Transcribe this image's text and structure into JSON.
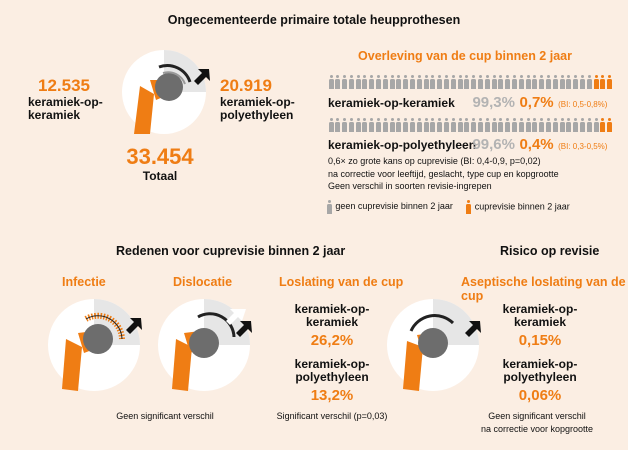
{
  "main_title": "Ongecementeerde primaire totale heupprothesen",
  "left_count": {
    "value": "12.535",
    "label_line1": "keramiek-op-",
    "label_line2": "keramiek"
  },
  "right_count": {
    "value": "20.919",
    "label_line1": "keramiek-op-",
    "label_line2": "polyethyleen"
  },
  "total": {
    "value": "33.454",
    "label": "Totaal"
  },
  "survival": {
    "title": "Overleving van de cup binnen 2 jaar",
    "row1": {
      "label": "keramiek-op-keramiek",
      "survival": "99,3%",
      "revision": "0,7%",
      "ci": "(BI: 0,5-0,8%)",
      "revision_fraction": 0.007
    },
    "row2": {
      "label": "keramiek-op-polyethyleen",
      "survival": "99,6%",
      "revision": "0,4%",
      "ci": "(BI: 0,3-0,5%)",
      "revision_fraction": 0.004
    },
    "note1": "0,6× zo grote kans op cuprevisie (BI: 0,4-0,9, p=0,02)",
    "note2": "na correctie voor leeftijd, geslacht, type cup en kopgrootte",
    "note3": "Geen verschil in soorten revisie-ingrepen",
    "legend_gray": "geen cuprevisie binnen 2 jaar",
    "legend_orange": "cuprevisie binnen 2 jaar"
  },
  "reasons": {
    "title": "Redenen voor cuprevisie binnen 2 jaar",
    "infectie": "Infectie",
    "dislocatie": "Dislocatie",
    "note_left": "Geen significant verschil",
    "loslating": {
      "title": "Loslating van de cup",
      "a_line1": "keramiek-op-",
      "a_line2": "keramiek",
      "a_value": "26,2%",
      "b_line1": "keramiek-op-",
      "b_line2": "polyethyleen",
      "b_value": "13,2%",
      "note": "Significant verschil (p=0,03)"
    }
  },
  "risk": {
    "title": "Risico op revisie",
    "subtitle": "Aseptische loslating van de cup",
    "a_line1": "keramiek-op-",
    "a_line2": "keramiek",
    "a_value": "0,15%",
    "b_line1": "keramiek-op-",
    "b_line2": "polyethyleen",
    "b_value": "0,06%",
    "note1": "Geen significant verschil",
    "note2": "na correctie voor kopgrootte"
  },
  "colors": {
    "orange": "#ef7d14",
    "gray": "#a7a7a7",
    "dark_gray": "#6d6d6d",
    "background": "#fbeee3"
  }
}
